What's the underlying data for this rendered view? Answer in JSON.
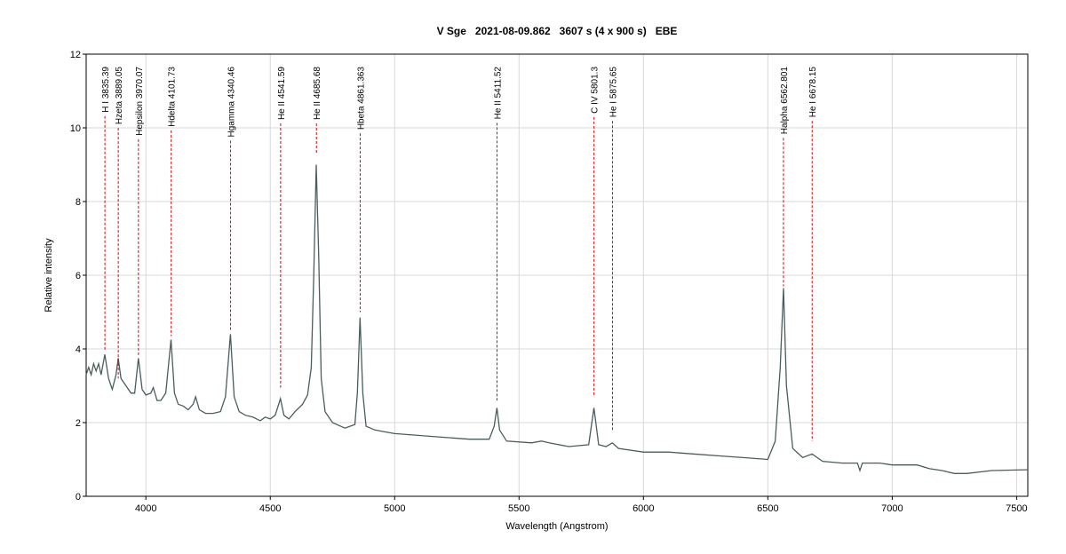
{
  "chart_data": {
    "type": "line",
    "title": "V Sge   2021-08-09.862   3607 s (4 x 900 s)   EBE",
    "x_label": "Wavelength (Angstrom)",
    "y_label": "Relative intensity",
    "xlim": [
      3760,
      7545
    ],
    "ylim": [
      0,
      12
    ],
    "xticks": [
      4000,
      4500,
      5000,
      5500,
      6000,
      6500,
      7000,
      7500
    ],
    "yticks": [
      0,
      2,
      4,
      6,
      8,
      10,
      12
    ],
    "grid": true,
    "series": [
      {
        "name": "V Sge",
        "color": "#4a5d5d",
        "x": [
          3760,
          3770,
          3780,
          3790,
          3800,
          3810,
          3820,
          3835,
          3850,
          3865,
          3880,
          3889,
          3900,
          3920,
          3940,
          3955,
          3970,
          3985,
          4000,
          4020,
          4030,
          4045,
          4060,
          4080,
          4101,
          4115,
          4130,
          4150,
          4170,
          4190,
          4200,
          4215,
          4240,
          4270,
          4300,
          4320,
          4340,
          4355,
          4375,
          4400,
          4430,
          4460,
          4480,
          4500,
          4520,
          4541,
          4555,
          4575,
          4600,
          4630,
          4650,
          4665,
          4675,
          4685,
          4695,
          4705,
          4720,
          4750,
          4800,
          4840,
          4850,
          4861,
          4872,
          4885,
          4920,
          4960,
          5000,
          5100,
          5200,
          5300,
          5380,
          5400,
          5411,
          5422,
          5450,
          5550,
          5590,
          5620,
          5700,
          5780,
          5801,
          5820,
          5850,
          5875,
          5900,
          6000,
          6100,
          6200,
          6300,
          6400,
          6500,
          6530,
          6550,
          6563,
          6575,
          6600,
          6640,
          6678,
          6720,
          6800,
          6860,
          6870,
          6880,
          6950,
          7000,
          7100,
          7150,
          7200,
          7250,
          7300,
          7400,
          7545
        ],
        "values": [
          3.3,
          3.5,
          3.3,
          3.6,
          3.4,
          3.6,
          3.3,
          3.85,
          3.2,
          2.9,
          3.3,
          3.75,
          3.2,
          3.0,
          2.8,
          2.8,
          3.75,
          2.9,
          2.75,
          2.8,
          2.95,
          2.6,
          2.6,
          2.8,
          4.25,
          2.8,
          2.5,
          2.45,
          2.35,
          2.5,
          2.7,
          2.35,
          2.25,
          2.25,
          2.3,
          2.7,
          4.4,
          2.7,
          2.3,
          2.2,
          2.15,
          2.05,
          2.15,
          2.1,
          2.2,
          2.65,
          2.2,
          2.1,
          2.3,
          2.5,
          2.75,
          3.5,
          6.0,
          9.0,
          6.5,
          3.2,
          2.3,
          2.0,
          1.85,
          1.95,
          2.8,
          4.85,
          2.8,
          1.9,
          1.8,
          1.75,
          1.7,
          1.65,
          1.6,
          1.55,
          1.55,
          1.9,
          2.4,
          1.8,
          1.5,
          1.45,
          1.5,
          1.45,
          1.35,
          1.4,
          2.4,
          1.4,
          1.35,
          1.45,
          1.3,
          1.2,
          1.2,
          1.15,
          1.1,
          1.05,
          1.0,
          1.5,
          3.5,
          5.65,
          3.0,
          1.3,
          1.05,
          1.15,
          0.95,
          0.9,
          0.9,
          0.7,
          0.9,
          0.9,
          0.85,
          0.85,
          0.75,
          0.7,
          0.62,
          0.62,
          0.7,
          0.72
        ]
      }
    ],
    "line_marker_color": "#e00000",
    "lines": [
      {
        "label": "H I 3835.39",
        "x": 3835.39,
        "y_end": 3.95
      },
      {
        "label": "Hzeta 3889.05",
        "x": 3889.05,
        "y_end": 3.2
      },
      {
        "label": "Hepsilon 3970.07",
        "x": 3970.07,
        "y_end": 3.8
      },
      {
        "label": "Hdelta 4101.73",
        "x": 4101.73,
        "y_end": 4.35
      },
      {
        "label": "Hgamma 4340.46",
        "x": 4340.46,
        "y_end": 4.5
      },
      {
        "label": "He II 4541.59",
        "x": 4541.59,
        "y_end": 2.95
      },
      {
        "label": "He II 4685.68",
        "x": 4685.68,
        "y_end": 9.3
      },
      {
        "label": "Hbeta 4861.363",
        "x": 4861.363,
        "y_end": 5.0
      },
      {
        "label": "He II 5411.52",
        "x": 5411.52,
        "y_end": 2.6
      },
      {
        "label": "C IV 5801.3",
        "x": 5801.3,
        "y_end": 2.75
      },
      {
        "label": "He I 5875.65",
        "x": 5875.65,
        "y_end": 1.75
      },
      {
        "label": "Halpha 6562.801",
        "x": 6562.801,
        "y_end": 5.7
      },
      {
        "label": "He I 6678.15",
        "x": 6678.15,
        "y_end": 1.5
      }
    ]
  }
}
